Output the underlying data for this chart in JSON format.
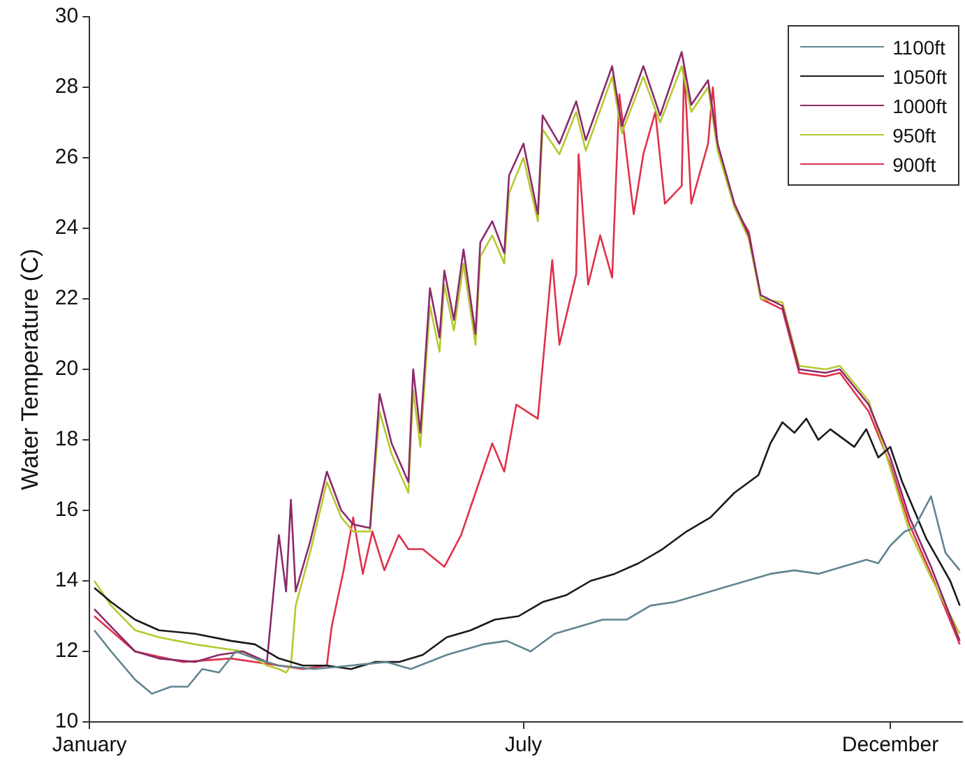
{
  "chart_data": {
    "type": "line",
    "ylabel": "Water Temperature (C)",
    "xlim": [
      "--01-01",
      "--12-31"
    ],
    "xticks": [
      {
        "value": "--01-01",
        "label": "January"
      },
      {
        "value": "--07-01",
        "label": "July"
      },
      {
        "value": "--12-01",
        "label": "December"
      }
    ],
    "ylim": [
      10,
      30
    ],
    "yticks": [
      10,
      12,
      14,
      16,
      18,
      20,
      22,
      24,
      26,
      28,
      30
    ],
    "grid": false,
    "legend": "top right",
    "line_style": "solid",
    "series": [
      {
        "name": "1100ft",
        "color": "#5f8590",
        "x": [
          "--01-03",
          "--01-10",
          "--01-20",
          "--01-27",
          "--02-04",
          "--02-11",
          "--02-17",
          "--02-24",
          "--03-03",
          "--03-11",
          "--03-21",
          "--04-05",
          "--04-20",
          "--05-05",
          "--05-15",
          "--05-30",
          "--06-14",
          "--06-24",
          "--07-04",
          "--07-14",
          "--07-24",
          "--08-03",
          "--08-13",
          "--08-23",
          "--09-02",
          "--09-12",
          "--09-22",
          "--10-02",
          "--10-12",
          "--10-22",
          "--11-01",
          "--11-11",
          "--11-21",
          "--11-26",
          "--12-01",
          "--12-07",
          "--12-11",
          "--12-18",
          "--12-24",
          "--12-30"
        ],
        "values": [
          12.6,
          12.0,
          11.2,
          10.8,
          11.0,
          11.0,
          11.5,
          11.4,
          12.0,
          11.8,
          11.6,
          11.5,
          11.6,
          11.7,
          11.5,
          11.9,
          12.2,
          12.3,
          12.0,
          12.5,
          12.7,
          12.9,
          12.9,
          13.3,
          13.4,
          13.6,
          13.8,
          14.0,
          14.2,
          14.3,
          14.2,
          14.4,
          14.6,
          14.5,
          15.0,
          15.4,
          15.5,
          16.4,
          14.8,
          14.3
        ]
      },
      {
        "name": "1050ft",
        "color": "#1a1a1a",
        "x": [
          "--01-03",
          "--01-10",
          "--01-20",
          "--01-30",
          "--02-14",
          "--03-01",
          "--03-11",
          "--03-21",
          "--03-31",
          "--04-10",
          "--04-20",
          "--04-30",
          "--05-10",
          "--05-20",
          "--05-30",
          "--06-09",
          "--06-19",
          "--06-29",
          "--07-09",
          "--07-19",
          "--07-29",
          "--08-08",
          "--08-18",
          "--08-28",
          "--09-07",
          "--09-17",
          "--09-27",
          "--10-07",
          "--10-12",
          "--10-17",
          "--10-22",
          "--10-27",
          "--11-01",
          "--11-06",
          "--11-16",
          "--11-21",
          "--11-26",
          "--12-01",
          "--12-06",
          "--12-11",
          "--12-16",
          "--12-21",
          "--12-26",
          "--12-30"
        ],
        "values": [
          13.8,
          13.4,
          12.9,
          12.6,
          12.5,
          12.3,
          12.2,
          11.8,
          11.6,
          11.6,
          11.5,
          11.7,
          11.7,
          11.9,
          12.4,
          12.6,
          12.9,
          13.0,
          13.4,
          13.6,
          14.0,
          14.2,
          14.5,
          14.9,
          15.4,
          15.8,
          16.5,
          17.0,
          17.9,
          18.5,
          18.2,
          18.6,
          18.0,
          18.3,
          17.8,
          18.3,
          17.5,
          17.8,
          16.8,
          16.0,
          15.2,
          14.6,
          14.0,
          13.3
        ]
      },
      {
        "name": "1000ft",
        "color": "#8b2a6a",
        "x": [
          "--01-03",
          "--01-10",
          "--01-20",
          "--01-30",
          "--02-14",
          "--02-24",
          "--03-06",
          "--03-16",
          "--03-21",
          "--03-24",
          "--03-26",
          "--03-28",
          "--04-03",
          "--04-10",
          "--04-16",
          "--04-21",
          "--04-28",
          "--05-02",
          "--05-07",
          "--05-14",
          "--05-16",
          "--05-19",
          "--05-23",
          "--05-27",
          "--05-29",
          "--06-02",
          "--06-06",
          "--06-11",
          "--06-13",
          "--06-18",
          "--06-23",
          "--06-25",
          "--07-01",
          "--07-07",
          "--07-09",
          "--07-16",
          "--07-23",
          "--07-27",
          "--08-07",
          "--08-11",
          "--08-20",
          "--08-27",
          "--09-05",
          "--09-09",
          "--09-16",
          "--09-20",
          "--09-27",
          "--10-03",
          "--10-08",
          "--10-17",
          "--10-24",
          "--11-04",
          "--11-10",
          "--11-22",
          "--12-01",
          "--12-09",
          "--12-18",
          "--12-30"
        ],
        "values": [
          13.2,
          12.7,
          12.0,
          11.8,
          11.7,
          11.9,
          12.0,
          11.7,
          15.3,
          13.7,
          16.3,
          13.7,
          15.1,
          17.1,
          16.0,
          15.6,
          15.5,
          19.3,
          17.9,
          16.8,
          20.0,
          18.2,
          22.3,
          20.9,
          22.8,
          21.4,
          23.4,
          21.0,
          23.6,
          24.2,
          23.3,
          25.5,
          26.4,
          24.4,
          27.2,
          26.4,
          27.6,
          26.5,
          28.6,
          26.9,
          28.6,
          27.2,
          29.0,
          27.5,
          28.2,
          26.4,
          24.7,
          23.8,
          22.1,
          21.8,
          20.0,
          19.9,
          20.0,
          19.0,
          17.5,
          15.8,
          14.4,
          12.3
        ]
      },
      {
        "name": "950ft",
        "color": "#b5c930",
        "x": [
          "--01-03",
          "--01-10",
          "--01-20",
          "--01-30",
          "--02-14",
          "--02-24",
          "--03-06",
          "--03-16",
          "--03-21",
          "--03-24",
          "--03-26",
          "--03-28",
          "--04-03",
          "--04-10",
          "--04-16",
          "--04-21",
          "--04-28",
          "--05-02",
          "--05-07",
          "--05-14",
          "--05-16",
          "--05-19",
          "--05-23",
          "--05-27",
          "--05-29",
          "--06-02",
          "--06-06",
          "--06-11",
          "--06-13",
          "--06-18",
          "--06-23",
          "--06-25",
          "--07-01",
          "--07-07",
          "--07-09",
          "--07-16",
          "--07-23",
          "--07-27",
          "--08-07",
          "--08-11",
          "--08-20",
          "--08-27",
          "--09-05",
          "--09-09",
          "--09-16",
          "--09-20",
          "--09-27",
          "--10-03",
          "--10-08",
          "--10-17",
          "--10-24",
          "--11-04",
          "--11-10",
          "--11-22",
          "--12-01",
          "--12-09",
          "--12-18",
          "--12-30"
        ],
        "values": [
          14.0,
          13.3,
          12.6,
          12.4,
          12.2,
          12.1,
          12.0,
          11.6,
          11.5,
          11.4,
          11.6,
          13.3,
          14.8,
          16.8,
          15.8,
          15.4,
          15.4,
          18.8,
          17.6,
          16.5,
          19.4,
          17.8,
          21.8,
          20.5,
          22.4,
          21.1,
          23.0,
          20.7,
          23.2,
          23.8,
          23.0,
          25.0,
          26.0,
          24.2,
          26.8,
          26.1,
          27.3,
          26.2,
          28.3,
          26.7,
          28.3,
          27.0,
          28.6,
          27.3,
          28.0,
          26.2,
          24.6,
          23.7,
          22.0,
          21.9,
          20.1,
          20.0,
          20.1,
          19.1,
          17.2,
          15.4,
          14.1,
          12.5
        ]
      },
      {
        "name": "900ft",
        "color": "#e0304a",
        "x": [
          "--01-03",
          "--01-20",
          "--02-09",
          "--03-01",
          "--03-21",
          "--03-31",
          "--04-10",
          "--04-12",
          "--04-17",
          "--04-21",
          "--04-25",
          "--04-29",
          "--05-04",
          "--05-10",
          "--05-14",
          "--05-20",
          "--05-29",
          "--06-05",
          "--06-11",
          "--06-18",
          "--06-23",
          "--06-28",
          "--07-07",
          "--07-13",
          "--07-16",
          "--07-23",
          "--07-24",
          "--07-28",
          "--08-02",
          "--08-07",
          "--08-10",
          "--08-16",
          "--08-20",
          "--08-25",
          "--08-29",
          "--09-05",
          "--09-06",
          "--09-09",
          "--09-16",
          "--09-18",
          "--09-20",
          "--09-27",
          "--10-03",
          "--10-08",
          "--10-17",
          "--10-24",
          "--11-04",
          "--11-10",
          "--11-22",
          "--12-01",
          "--12-09",
          "--12-18",
          "--12-30"
        ],
        "values": [
          13.0,
          12.0,
          11.7,
          11.8,
          11.6,
          11.5,
          11.6,
          12.7,
          14.3,
          15.8,
          14.2,
          15.4,
          14.3,
          15.3,
          14.9,
          14.9,
          14.4,
          15.3,
          16.5,
          17.9,
          17.1,
          19.0,
          18.6,
          23.1,
          20.7,
          22.7,
          26.1,
          22.4,
          23.8,
          22.6,
          27.8,
          24.4,
          26.1,
          27.3,
          24.7,
          25.2,
          28.6,
          24.7,
          26.4,
          28.0,
          26.3,
          24.6,
          23.9,
          22.0,
          21.7,
          19.9,
          19.8,
          19.9,
          18.8,
          17.3,
          15.6,
          14.2,
          12.2
        ]
      }
    ]
  }
}
